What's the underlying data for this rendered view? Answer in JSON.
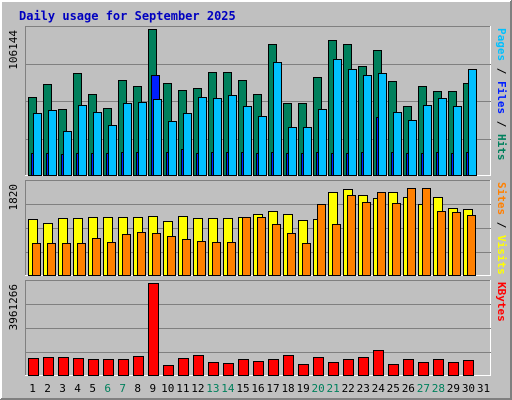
{
  "chart_data": {
    "type": "bar",
    "title": "Daily usage for September 2025",
    "days": [
      "1",
      "2",
      "3",
      "4",
      "5",
      "6",
      "7",
      "8",
      "9",
      "10",
      "11",
      "12",
      "13",
      "14",
      "15",
      "16",
      "17",
      "18",
      "19",
      "20",
      "21",
      "22",
      "23",
      "24",
      "25",
      "26",
      "27",
      "28",
      "29",
      "30",
      "31"
    ],
    "weekend_days": [
      "6",
      "7",
      "13",
      "14",
      "20",
      "21",
      "27",
      "28"
    ],
    "panels": [
      {
        "id": "hits",
        "ymax_label": "106144",
        "ymax": 106144,
        "axis_label_parts": [
          {
            "text": "Pages",
            "color": "#00c0ff"
          },
          {
            "text": " / ",
            "color": "#000000"
          },
          {
            "text": "Files",
            "color": "#0020ff"
          },
          {
            "text": " / ",
            "color": "#000000"
          },
          {
            "text": "Hits",
            "color": "#00805c"
          }
        ],
        "series": [
          {
            "name": "Hits",
            "color": "#00805c",
            "values": [
              57000,
              66000,
              48000,
              74000,
              59000,
              49000,
              69000,
              65000,
              106000,
              67000,
              62000,
              63000,
              75000,
              75000,
              69000,
              59000,
              95000,
              52000,
              52000,
              71000,
              98000,
              95000,
              79000,
              91000,
              68000,
              50000,
              65000,
              61000,
              61000,
              67000,
              0
            ]
          },
          {
            "name": "Files",
            "color": "#0020ff",
            "values": [
              16000,
              16000,
              15000,
              16000,
              16000,
              16000,
              17000,
              17000,
              73000,
              17000,
              19000,
              16000,
              17000,
              17000,
              17000,
              16000,
              17000,
              16000,
              16000,
              17000,
              16000,
              16000,
              17000,
              42000,
              17000,
              16000,
              16000,
              17000,
              16000,
              17000,
              0
            ]
          },
          {
            "name": "Pages",
            "color": "#00c0ff",
            "values": [
              45000,
              47000,
              32000,
              51000,
              46000,
              36000,
              52000,
              53000,
              55000,
              39000,
              45000,
              57000,
              56000,
              58000,
              50000,
              43000,
              82000,
              35000,
              35000,
              48000,
              84000,
              77000,
              73000,
              74000,
              46000,
              40000,
              51000,
              56000,
              50000,
              77000,
              0
            ]
          }
        ]
      },
      {
        "id": "visits",
        "ymax_label": "1820",
        "ymax": 1820,
        "axis_label_parts": [
          {
            "text": "Sites",
            "color": "#ff8000"
          },
          {
            "text": " / ",
            "color": "#000000"
          },
          {
            "text": "Visits",
            "color": "#ffff00"
          }
        ],
        "series": [
          {
            "name": "Visits",
            "color": "#ffff00",
            "values": [
              1100,
              1020,
              1130,
              1130,
              1140,
              1140,
              1140,
              1140,
              1160,
              1060,
              1170,
              1130,
              1130,
              1130,
              1150,
              1200,
              1260,
              1200,
              1090,
              1100,
              1640,
              1700,
              1580,
              1530,
              1640,
              1550,
              1410,
              1550,
              1320,
              1300,
              0
            ]
          },
          {
            "name": "Sites",
            "color": "#ff8000",
            "values": [
              630,
              630,
              640,
              630,
              730,
              660,
              820,
              850,
              830,
              780,
              710,
              680,
              650,
              650,
              1150,
              1140,
              1010,
              830,
              630,
              1400,
              1000,
              1580,
              1450,
              1650,
              1420,
              1720,
              1720,
              1260,
              1240,
              1190,
              0
            ]
          }
        ]
      },
      {
        "id": "kbytes",
        "ymax_label": "3961266",
        "ymax": 3961266,
        "axis_label_parts": [
          {
            "text": "KBytes",
            "color": "#ff0000"
          }
        ],
        "series": [
          {
            "name": "KBytes",
            "color": "#ff0000",
            "values": [
              720000,
              770000,
              770000,
              720000,
              710000,
              710000,
              710000,
              820000,
              3960000,
              450000,
              730000,
              850000,
              550000,
              530000,
              700000,
              610000,
              700000,
              840000,
              480000,
              780000,
              570000,
              710000,
              780000,
              1080000,
              470000,
              710000,
              550000,
              700000,
              540000,
              650000,
              0
            ]
          }
        ]
      }
    ]
  }
}
